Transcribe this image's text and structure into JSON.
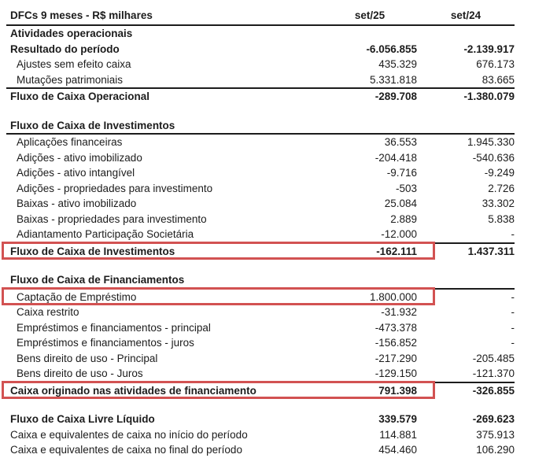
{
  "title": "DFCs 9 meses - R$ milhares",
  "columns": {
    "col1": "set/25",
    "col2": "set/24"
  },
  "highlight_color": "#d25252",
  "table": {
    "rows": [
      {
        "label": "Atividades operacionais",
        "v1": "",
        "v2": "",
        "style": "bold",
        "indent": false
      },
      {
        "label": "Resultado do período",
        "v1": "-6.056.855",
        "v2": "-2.139.917",
        "style": "bold",
        "indent": false
      },
      {
        "label": "Ajustes sem efeito caixa",
        "v1": "435.329",
        "v2": "676.173",
        "style": "normal",
        "indent": true
      },
      {
        "label": "Mutações patrimoniais",
        "v1": "5.331.818",
        "v2": "83.665",
        "style": "normal",
        "indent": true
      },
      {
        "label": "Fluxo de Caixa Operacional",
        "v1": "-289.708",
        "v2": "-1.380.079",
        "style": "bold",
        "indent": false,
        "rule_top": true
      },
      {
        "spacer": true
      },
      {
        "label": "Fluxo de Caixa de Investimentos",
        "v1": "",
        "v2": "",
        "style": "bold",
        "indent": false,
        "rule_bottom": true
      },
      {
        "label": "Aplicações financeiras",
        "v1": "36.553",
        "v2": "1.945.330",
        "style": "normal",
        "indent": true
      },
      {
        "label": "Adições - ativo imobilizado",
        "v1": "-204.418",
        "v2": "-540.636",
        "style": "normal",
        "indent": true
      },
      {
        "label": "Adições - ativo intangível",
        "v1": "-9.716",
        "v2": "-9.249",
        "style": "normal",
        "indent": true
      },
      {
        "label": "Adições - propriedades para investimento",
        "v1": "-503",
        "v2": "2.726",
        "style": "normal",
        "indent": true
      },
      {
        "label": "Baixas - ativo imobilizado",
        "v1": "25.084",
        "v2": "33.302",
        "style": "normal",
        "indent": true
      },
      {
        "label": "Baixas - propriedades para investimento",
        "v1": "2.889",
        "v2": "5.838",
        "style": "normal",
        "indent": true
      },
      {
        "label": "Adiantamento Participação Societária",
        "v1": "-12.000",
        "v2": "-",
        "style": "normal",
        "indent": true
      },
      {
        "label": "Fluxo de Caixa de Investimentos",
        "v1": "-162.111",
        "v2": "1.437.311",
        "style": "bold",
        "indent": false,
        "rule_top": true,
        "highlight": true
      },
      {
        "spacer": true
      },
      {
        "label": "Fluxo de Caixa de Financiamentos",
        "v1": "",
        "v2": "",
        "style": "bold",
        "indent": false,
        "rule_bottom": true
      },
      {
        "label": "Captação de Empréstimo",
        "v1": "1.800.000",
        "v2": "-",
        "style": "normal",
        "indent": true,
        "highlight": true
      },
      {
        "label": "Caixa restrito",
        "v1": "-31.932",
        "v2": "-",
        "style": "normal",
        "indent": true
      },
      {
        "label": "Empréstimos e financiamentos - principal",
        "v1": "-473.378",
        "v2": "-",
        "style": "normal",
        "indent": true
      },
      {
        "label": "Empréstimos e financiamentos - juros",
        "v1": "-156.852",
        "v2": "-",
        "style": "normal",
        "indent": true
      },
      {
        "label": "Bens direito de uso - Principal",
        "v1": "-217.290",
        "v2": "-205.485",
        "style": "normal",
        "indent": true
      },
      {
        "label": "Bens direito de uso - Juros",
        "v1": "-129.150",
        "v2": "-121.370",
        "style": "normal",
        "indent": true
      },
      {
        "label": "Caixa originado nas atividades de financiamento",
        "v1": "791.398",
        "v2": "-326.855",
        "style": "bold",
        "indent": false,
        "rule_top": true,
        "highlight": true
      },
      {
        "spacer": true
      },
      {
        "label": "Fluxo de Caixa Livre Líquido",
        "v1": "339.579",
        "v2": "-269.623",
        "style": "bold",
        "indent": false
      },
      {
        "label": "Caixa e equivalentes de caixa no início do período",
        "v1": "114.881",
        "v2": "375.913",
        "style": "normal",
        "indent": false
      },
      {
        "label": "Caixa e equivalentes de caixa no final do período",
        "v1": "454.460",
        "v2": "106.290",
        "style": "normal",
        "indent": false
      }
    ]
  }
}
